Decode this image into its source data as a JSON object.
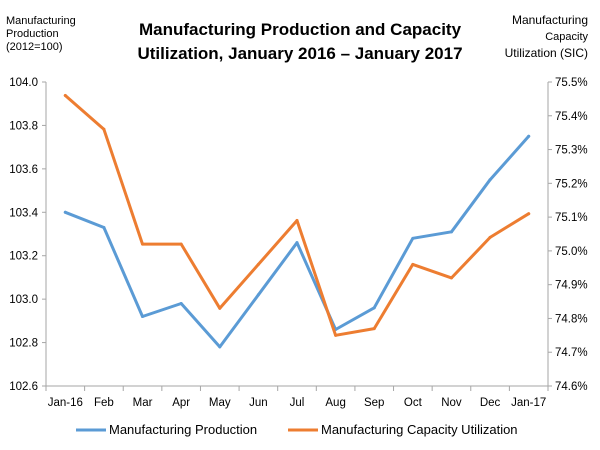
{
  "chart_data": {
    "type": "line",
    "title": [
      "Manufacturing Production and Capacity",
      "Utilization, January 2016 – January 2017"
    ],
    "left_axis": {
      "label": [
        "Manufacturing",
        "Production",
        "(2012=100)"
      ],
      "ylim": [
        102.6,
        104.0
      ],
      "ticks": [
        "102.6",
        "102.8",
        "103.0",
        "103.2",
        "103.4",
        "103.6",
        "103.8",
        "104.0"
      ]
    },
    "right_axis": {
      "label": [
        "Manufacturing",
        "Capacity",
        "Utilization (SIC)"
      ],
      "ylim": [
        74.6,
        75.5
      ],
      "ticks": [
        "74.6%",
        "74.7%",
        "74.8%",
        "74.9%",
        "75.0%",
        "75.1%",
        "75.2%",
        "75.3%",
        "75.4%",
        "75.5%"
      ]
    },
    "categories": [
      "Jan-16",
      "Feb",
      "Mar",
      "Apr",
      "May",
      "Jun",
      "Jul",
      "Aug",
      "Sep",
      "Oct",
      "Nov",
      "Dec",
      "Jan-17"
    ],
    "series": [
      {
        "name": "Manufacturing Production",
        "axis": "left",
        "color": "#5B9BD5",
        "values": [
          103.4,
          103.33,
          102.92,
          102.98,
          102.78,
          103.02,
          103.26,
          102.86,
          102.96,
          103.28,
          103.31,
          103.55,
          103.75
        ]
      },
      {
        "name": "Manufacturing Capacity Utilization",
        "axis": "right",
        "color": "#ED7D31",
        "values": [
          75.46,
          75.36,
          75.02,
          75.02,
          74.83,
          74.96,
          75.09,
          74.75,
          74.77,
          74.96,
          74.92,
          75.04,
          75.11
        ]
      }
    ]
  }
}
